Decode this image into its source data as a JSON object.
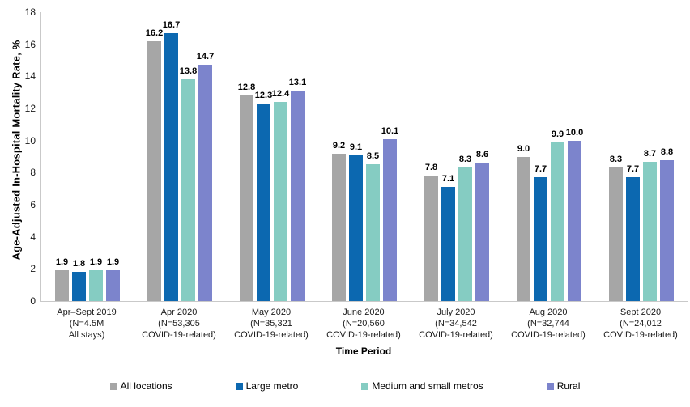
{
  "chart_data": {
    "type": "bar",
    "title": "",
    "ylabel": "Age-Adjusted In-Hospital Mortality Rate, %",
    "xlabel": "Time Period",
    "ylim": [
      0,
      18
    ],
    "yticks": [
      0,
      2,
      4,
      6,
      8,
      10,
      12,
      14,
      16,
      18
    ],
    "grid": false,
    "legend_position": "bottom",
    "value_label_format": "one_decimal",
    "categories": [
      {
        "lines": [
          "Apr–Sept 2019",
          "(N=4.5M",
          "All stays)"
        ],
        "patterned": true
      },
      {
        "lines": [
          "Apr 2020",
          "(N=53,305",
          "COVID-19-related)"
        ],
        "patterned": false
      },
      {
        "lines": [
          "May 2020",
          "(N=35,321",
          "COVID-19-related)"
        ],
        "patterned": false
      },
      {
        "lines": [
          "June 2020",
          "(N=20,560",
          "COVID-19-related)"
        ],
        "patterned": false
      },
      {
        "lines": [
          "July 2020",
          "(N=34,542",
          "COVID-19-related)"
        ],
        "patterned": false
      },
      {
        "lines": [
          "Aug 2020",
          "(N=32,744",
          "COVID-19-related)"
        ],
        "patterned": false
      },
      {
        "lines": [
          "Sept 2020",
          "(N=24,012",
          "COVID-19-related)"
        ],
        "patterned": false
      }
    ],
    "series": [
      {
        "name": "All locations",
        "color": "#a6a6a6",
        "values": [
          1.9,
          16.2,
          12.8,
          9.2,
          7.8,
          9.0,
          8.3
        ]
      },
      {
        "name": "Large metro",
        "color": "#0c68b0",
        "values": [
          1.8,
          16.7,
          12.3,
          9.1,
          7.1,
          7.7,
          7.7
        ]
      },
      {
        "name": "Medium and small metros",
        "color": "#85ccc2",
        "values": [
          1.9,
          13.8,
          12.4,
          8.5,
          8.3,
          9.9,
          8.7
        ]
      },
      {
        "name": "Rural",
        "color": "#7c84cc",
        "values": [
          1.9,
          14.7,
          13.1,
          10.1,
          8.6,
          10.0,
          8.8
        ]
      }
    ]
  }
}
